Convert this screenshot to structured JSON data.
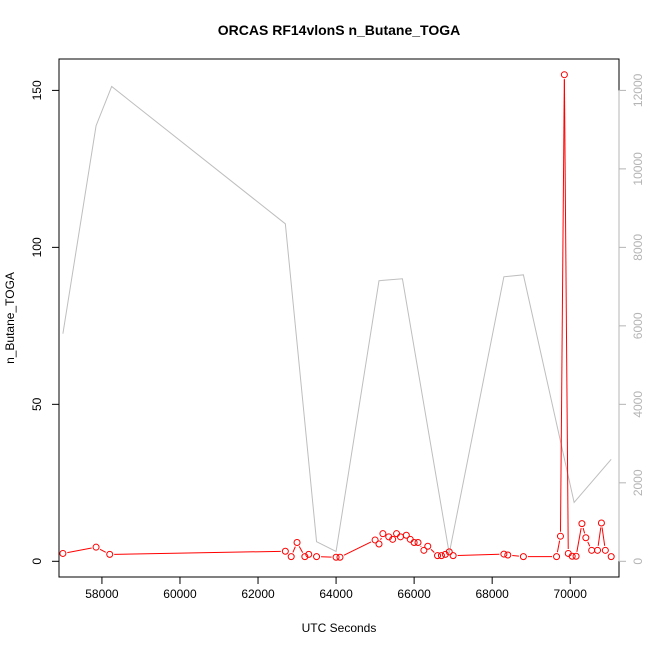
{
  "chart_data": {
    "type": "line",
    "title": "ORCAS RF14vlonS n_Butane_TOGA",
    "xlabel": "UTC Seconds",
    "ylabel": "n_Butane_TOGA",
    "xlim": [
      56900,
      71250
    ],
    "ylim": [
      -5,
      160
    ],
    "y2lim": [
      -400,
      12800
    ],
    "x_ticks": [
      58000,
      60000,
      62000,
      64000,
      66000,
      68000,
      70000
    ],
    "y_ticks": [
      0,
      50,
      100,
      150
    ],
    "y2_ticks": [
      0,
      2000,
      4000,
      6000,
      8000,
      10000,
      12000
    ],
    "grid": false,
    "series": [
      {
        "axis": "left",
        "style": "line+circles",
        "color": "#ff0000",
        "x": [
          57000,
          57850,
          58200,
          62700,
          62850,
          63000,
          63200,
          63300,
          63500,
          64000,
          64100,
          65000,
          65100,
          65200,
          65350,
          65450,
          65550,
          65650,
          65800,
          65900,
          66000,
          66100,
          66250,
          66350,
          66600,
          66700,
          66800,
          66900,
          67000,
          68300,
          68400,
          68800,
          69650,
          69750,
          69850,
          69950,
          70050,
          70150,
          70300,
          70400,
          70550,
          70700,
          70800,
          70900,
          71050
        ],
        "y": [
          2.5,
          4.5,
          2.2,
          3.2,
          1.5,
          6,
          1.5,
          2.2,
          1.5,
          1.3,
          1.3,
          6.8,
          5.5,
          8.8,
          7.8,
          7,
          8.8,
          7.8,
          8.3,
          7,
          6,
          6,
          3.5,
          4.8,
          1.8,
          1.8,
          2.2,
          3,
          1.8,
          2.3,
          2,
          1.5,
          1.5,
          8,
          155,
          2.5,
          1.6,
          1.6,
          12,
          7.5,
          3.5,
          3.5,
          12.2,
          3.5,
          1.5
        ]
      },
      {
        "axis": "right",
        "style": "line",
        "color": "#bebebe",
        "x": [
          57000,
          57850,
          58250,
          62700,
          63500,
          64000,
          65100,
          65700,
          66900,
          68300,
          68800,
          70100,
          71050
        ],
        "y": [
          5800,
          11100,
          12100,
          8600,
          500,
          250,
          7150,
          7200,
          200,
          7250,
          7300,
          1500,
          2600
        ]
      }
    ]
  }
}
